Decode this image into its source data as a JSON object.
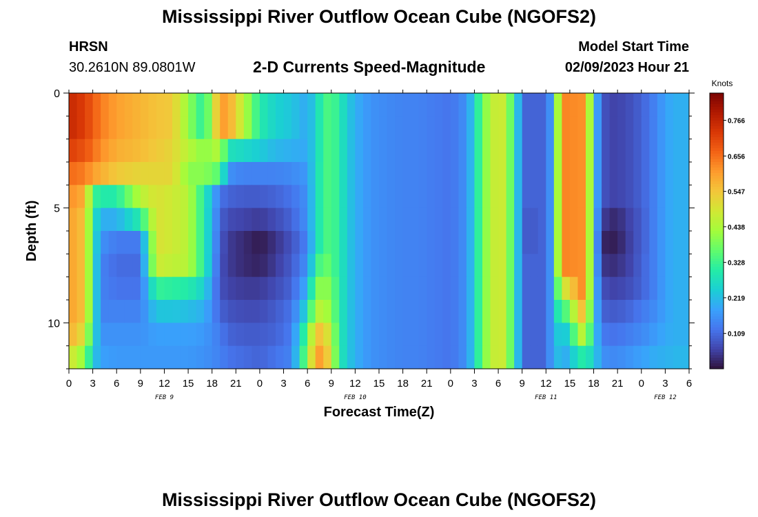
{
  "page": {
    "title": "Mississippi River Outflow Ocean Cube (NGOFS2)",
    "station_name": "HRSN",
    "station_coords": "30.2610N  89.0801W",
    "subtitle": "2-D Currents Speed-Magnitude",
    "model_start_label": "Model Start Time",
    "model_start_value": "02/09/2023 Hour 21",
    "footer_title": "Mississippi River Outflow Ocean Cube (NGOFS2)"
  },
  "colors": {
    "background": "#ffffff",
    "scale": [
      "#30123b",
      "#4145ab",
      "#4675ed",
      "#39a2fc",
      "#1bcfd4",
      "#24eca6",
      "#61fc6c",
      "#a4fc3b",
      "#d1e834",
      "#f3c63a",
      "#fe9b2d",
      "#f36315",
      "#d93806",
      "#b11901",
      "#7a0402"
    ]
  },
  "chart_data": {
    "type": "heatmap",
    "title": "2-D Currents Speed-Magnitude",
    "xlabel": "Forecast Time(Z)",
    "ylabel": "Depth (ft)",
    "colorbar_label": "Knots",
    "colorbar_ticks": [
      0.766,
      0.656,
      0.547,
      0.438,
      0.328,
      0.219,
      0.109
    ],
    "colorbar_range": [
      0.0,
      0.85
    ],
    "x_unit": "hours since 0Z Feb 9",
    "x_range": [
      0,
      78
    ],
    "x_ticks": [
      0,
      3,
      6,
      9,
      12,
      15,
      18,
      21,
      24,
      27,
      30,
      33,
      36,
      39,
      42,
      45,
      48,
      51,
      54,
      57,
      60,
      63,
      66,
      69,
      72,
      75,
      78
    ],
    "x_tick_labels": [
      "0",
      "3",
      "6",
      "9",
      "12",
      "15",
      "18",
      "21",
      "0",
      "3",
      "6",
      "9",
      "12",
      "15",
      "18",
      "21",
      "0",
      "3",
      "6",
      "9",
      "12",
      "15",
      "18",
      "21",
      "0",
      "3",
      "6"
    ],
    "date_labels": [
      {
        "x": 12,
        "label": "FEB 9"
      },
      {
        "x": 36,
        "label": "FEB 10"
      },
      {
        "x": 60,
        "label": "FEB 11"
      },
      {
        "x": 75,
        "label": "FEB 12"
      }
    ],
    "y_range": [
      0,
      12
    ],
    "y_ticks": [
      0,
      5,
      10
    ],
    "y_tick_labels": [
      "0",
      "5",
      "10"
    ],
    "depth_levels_ft": [
      0.5,
      1.5,
      2.5,
      3.5,
      4.5,
      5.5,
      6.5,
      7.5,
      8.5,
      9.5,
      10.5,
      11.5
    ],
    "time_keyframes": [
      0,
      2,
      3,
      4,
      6,
      9,
      11,
      13,
      15,
      17,
      19,
      20,
      22,
      24,
      26,
      28,
      30,
      31,
      32,
      33,
      34,
      35,
      36,
      38,
      40,
      42,
      44,
      46,
      48,
      50,
      51,
      52,
      54,
      55,
      56,
      57,
      58,
      59,
      60,
      61,
      62,
      63,
      64,
      65,
      66,
      67,
      68,
      69,
      70,
      71,
      72,
      73,
      74,
      75,
      76,
      78
    ],
    "speed_knots_rows": [
      [
        0.76,
        0.72,
        0.68,
        0.64,
        0.6,
        0.57,
        0.55,
        0.54,
        0.41,
        0.3,
        0.6,
        0.6,
        0.45,
        0.3,
        0.25,
        0.23,
        0.19,
        0.25,
        0.33,
        0.35,
        0.3,
        0.24,
        0.2,
        0.16,
        0.15,
        0.14,
        0.14,
        0.13,
        0.12,
        0.16,
        0.25,
        0.38,
        0.5,
        0.45,
        0.3,
        0.12,
        0.08,
        0.12,
        0.08,
        0.23,
        0.63,
        0.63,
        0.62,
        0.62,
        0.25,
        0.09,
        0.06,
        0.06,
        0.07,
        0.08,
        0.1,
        0.12,
        0.15,
        0.18,
        0.2,
        0.2
      ],
      [
        0.76,
        0.72,
        0.68,
        0.64,
        0.6,
        0.57,
        0.55,
        0.54,
        0.41,
        0.3,
        0.6,
        0.6,
        0.45,
        0.3,
        0.25,
        0.23,
        0.19,
        0.25,
        0.33,
        0.35,
        0.3,
        0.24,
        0.2,
        0.16,
        0.15,
        0.14,
        0.14,
        0.13,
        0.12,
        0.16,
        0.25,
        0.38,
        0.5,
        0.45,
        0.3,
        0.12,
        0.08,
        0.12,
        0.08,
        0.23,
        0.63,
        0.63,
        0.62,
        0.62,
        0.25,
        0.09,
        0.06,
        0.06,
        0.07,
        0.08,
        0.1,
        0.12,
        0.15,
        0.18,
        0.2,
        0.2
      ],
      [
        0.72,
        0.69,
        0.66,
        0.62,
        0.58,
        0.56,
        0.54,
        0.52,
        0.45,
        0.4,
        0.45,
        0.28,
        0.26,
        0.24,
        0.21,
        0.2,
        0.19,
        0.25,
        0.33,
        0.35,
        0.3,
        0.24,
        0.2,
        0.16,
        0.15,
        0.14,
        0.14,
        0.13,
        0.12,
        0.16,
        0.25,
        0.38,
        0.5,
        0.45,
        0.3,
        0.12,
        0.08,
        0.12,
        0.08,
        0.23,
        0.63,
        0.63,
        0.62,
        0.62,
        0.25,
        0.09,
        0.06,
        0.06,
        0.07,
        0.08,
        0.1,
        0.12,
        0.15,
        0.18,
        0.2,
        0.2
      ],
      [
        0.66,
        0.64,
        0.6,
        0.58,
        0.54,
        0.52,
        0.52,
        0.52,
        0.4,
        0.4,
        0.35,
        0.16,
        0.14,
        0.14,
        0.14,
        0.15,
        0.17,
        0.26,
        0.33,
        0.35,
        0.3,
        0.24,
        0.2,
        0.16,
        0.15,
        0.14,
        0.14,
        0.13,
        0.12,
        0.16,
        0.25,
        0.38,
        0.5,
        0.45,
        0.3,
        0.12,
        0.08,
        0.12,
        0.08,
        0.23,
        0.63,
        0.63,
        0.62,
        0.62,
        0.25,
        0.09,
        0.06,
        0.06,
        0.07,
        0.08,
        0.1,
        0.12,
        0.15,
        0.18,
        0.2,
        0.2
      ],
      [
        0.62,
        0.58,
        0.33,
        0.3,
        0.3,
        0.45,
        0.5,
        0.48,
        0.45,
        0.3,
        0.12,
        0.1,
        0.09,
        0.09,
        0.1,
        0.12,
        0.16,
        0.26,
        0.33,
        0.35,
        0.3,
        0.24,
        0.2,
        0.16,
        0.15,
        0.14,
        0.14,
        0.13,
        0.12,
        0.16,
        0.25,
        0.38,
        0.5,
        0.45,
        0.3,
        0.12,
        0.08,
        0.12,
        0.08,
        0.23,
        0.63,
        0.63,
        0.62,
        0.62,
        0.25,
        0.09,
        0.06,
        0.06,
        0.07,
        0.08,
        0.1,
        0.12,
        0.15,
        0.18,
        0.2,
        0.2
      ],
      [
        0.6,
        0.55,
        0.3,
        0.2,
        0.2,
        0.3,
        0.5,
        0.48,
        0.45,
        0.3,
        0.1,
        0.07,
        0.06,
        0.05,
        0.07,
        0.1,
        0.16,
        0.26,
        0.33,
        0.35,
        0.3,
        0.24,
        0.2,
        0.16,
        0.15,
        0.14,
        0.14,
        0.13,
        0.12,
        0.16,
        0.25,
        0.38,
        0.5,
        0.45,
        0.3,
        0.12,
        0.06,
        0.12,
        0.08,
        0.23,
        0.63,
        0.63,
        0.62,
        0.62,
        0.25,
        0.06,
        0.03,
        0.03,
        0.05,
        0.07,
        0.09,
        0.12,
        0.15,
        0.18,
        0.2,
        0.2
      ],
      [
        0.6,
        0.55,
        0.3,
        0.16,
        0.13,
        0.13,
        0.5,
        0.48,
        0.45,
        0.3,
        0.09,
        0.05,
        0.03,
        0.01,
        0.04,
        0.08,
        0.14,
        0.26,
        0.33,
        0.35,
        0.3,
        0.24,
        0.2,
        0.16,
        0.15,
        0.14,
        0.14,
        0.13,
        0.12,
        0.16,
        0.25,
        0.38,
        0.5,
        0.45,
        0.3,
        0.12,
        0.06,
        0.12,
        0.08,
        0.23,
        0.63,
        0.63,
        0.62,
        0.62,
        0.25,
        0.03,
        0.01,
        0.02,
        0.04,
        0.07,
        0.09,
        0.12,
        0.15,
        0.18,
        0.2,
        0.2
      ],
      [
        0.6,
        0.55,
        0.3,
        0.14,
        0.11,
        0.11,
        0.48,
        0.46,
        0.45,
        0.3,
        0.08,
        0.05,
        0.03,
        0.02,
        0.05,
        0.09,
        0.16,
        0.3,
        0.38,
        0.35,
        0.3,
        0.24,
        0.2,
        0.16,
        0.15,
        0.14,
        0.14,
        0.13,
        0.12,
        0.16,
        0.25,
        0.38,
        0.5,
        0.45,
        0.3,
        0.12,
        0.08,
        0.12,
        0.08,
        0.23,
        0.63,
        0.63,
        0.62,
        0.62,
        0.25,
        0.05,
        0.03,
        0.04,
        0.05,
        0.07,
        0.1,
        0.12,
        0.15,
        0.18,
        0.2,
        0.2
      ],
      [
        0.6,
        0.55,
        0.3,
        0.14,
        0.12,
        0.12,
        0.32,
        0.31,
        0.3,
        0.25,
        0.08,
        0.06,
        0.05,
        0.05,
        0.07,
        0.1,
        0.2,
        0.38,
        0.42,
        0.38,
        0.3,
        0.24,
        0.2,
        0.16,
        0.15,
        0.14,
        0.14,
        0.13,
        0.12,
        0.16,
        0.25,
        0.38,
        0.5,
        0.45,
        0.3,
        0.12,
        0.08,
        0.12,
        0.08,
        0.23,
        0.5,
        0.5,
        0.62,
        0.62,
        0.25,
        0.08,
        0.06,
        0.06,
        0.07,
        0.08,
        0.1,
        0.12,
        0.15,
        0.18,
        0.2,
        0.2
      ],
      [
        0.6,
        0.55,
        0.3,
        0.14,
        0.14,
        0.14,
        0.23,
        0.23,
        0.22,
        0.2,
        0.1,
        0.08,
        0.07,
        0.07,
        0.09,
        0.12,
        0.26,
        0.45,
        0.45,
        0.4,
        0.3,
        0.24,
        0.2,
        0.16,
        0.15,
        0.14,
        0.14,
        0.13,
        0.12,
        0.16,
        0.25,
        0.38,
        0.5,
        0.45,
        0.3,
        0.12,
        0.08,
        0.12,
        0.08,
        0.23,
        0.35,
        0.35,
        0.55,
        0.55,
        0.25,
        0.1,
        0.09,
        0.09,
        0.1,
        0.11,
        0.13,
        0.14,
        0.16,
        0.18,
        0.2,
        0.2
      ],
      [
        0.58,
        0.5,
        0.28,
        0.16,
        0.16,
        0.16,
        0.18,
        0.18,
        0.18,
        0.17,
        0.13,
        0.1,
        0.09,
        0.09,
        0.1,
        0.13,
        0.36,
        0.55,
        0.55,
        0.45,
        0.3,
        0.24,
        0.2,
        0.16,
        0.15,
        0.14,
        0.14,
        0.13,
        0.12,
        0.16,
        0.25,
        0.38,
        0.5,
        0.45,
        0.3,
        0.12,
        0.08,
        0.12,
        0.08,
        0.23,
        0.24,
        0.24,
        0.45,
        0.45,
        0.25,
        0.13,
        0.12,
        0.12,
        0.13,
        0.14,
        0.15,
        0.16,
        0.18,
        0.19,
        0.2,
        0.2
      ],
      [
        0.5,
        0.4,
        0.24,
        0.18,
        0.17,
        0.17,
        0.17,
        0.17,
        0.17,
        0.16,
        0.14,
        0.12,
        0.11,
        0.1,
        0.12,
        0.14,
        0.4,
        0.6,
        0.6,
        0.48,
        0.3,
        0.24,
        0.2,
        0.16,
        0.15,
        0.14,
        0.14,
        0.13,
        0.12,
        0.16,
        0.25,
        0.38,
        0.5,
        0.45,
        0.3,
        0.12,
        0.08,
        0.12,
        0.08,
        0.23,
        0.2,
        0.2,
        0.3,
        0.3,
        0.25,
        0.16,
        0.15,
        0.15,
        0.16,
        0.17,
        0.18,
        0.19,
        0.2,
        0.2,
        0.21,
        0.21
      ]
    ]
  }
}
